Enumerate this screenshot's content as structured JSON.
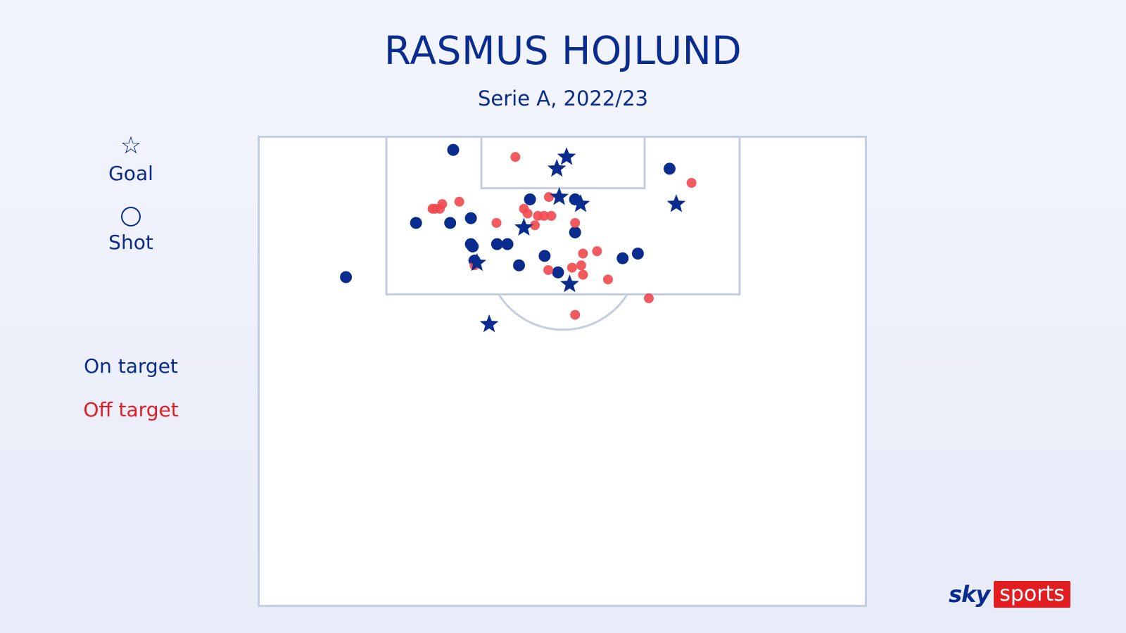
{
  "title": "RASMUS HOJLUND",
  "subtitle": "Serie A, 2022/23",
  "legend": {
    "goal_icon": "☆",
    "goal_label": "Goal",
    "shot_label": "Shot",
    "on_target_label": "On target",
    "off_target_label": "Off target"
  },
  "colors": {
    "on_target": "#0b2c8f",
    "off_target": "#f0494f",
    "pitch_lines": "#c3cde3",
    "brand_red": "#e11d22"
  },
  "brand": {
    "sky": "sky",
    "sports": "sports"
  },
  "chart_data": {
    "type": "scatter",
    "title": "RASMUS HOJLUND",
    "subtitle": "Serie A, 2022/23",
    "xlim": [
      0,
      100
    ],
    "ylim": [
      0,
      100
    ],
    "series": [
      {
        "name": "On target",
        "shape": "circle",
        "points": [
          {
            "x": 32.1,
            "y": 3.0
          },
          {
            "x": 67.6,
            "y": 7.0
          },
          {
            "x": 14.5,
            "y": 30.0
          },
          {
            "x": 44.7,
            "y": 13.5
          },
          {
            "x": 26.0,
            "y": 18.5
          },
          {
            "x": 31.6,
            "y": 18.5
          },
          {
            "x": 35.0,
            "y": 17.5
          },
          {
            "x": 52.1,
            "y": 20.5
          },
          {
            "x": 35.0,
            "y": 23.0
          },
          {
            "x": 35.3,
            "y": 23.5
          },
          {
            "x": 39.3,
            "y": 23.0
          },
          {
            "x": 41.0,
            "y": 23.0
          },
          {
            "x": 35.6,
            "y": 26.5
          },
          {
            "x": 42.9,
            "y": 27.5
          },
          {
            "x": 47.1,
            "y": 25.5
          },
          {
            "x": 49.3,
            "y": 29.0
          },
          {
            "x": 59.9,
            "y": 26.0
          },
          {
            "x": 62.4,
            "y": 25.0
          },
          {
            "x": 52.1,
            "y": 13.5
          }
        ]
      },
      {
        "name": "Off target",
        "shape": "circle",
        "points": [
          {
            "x": 42.3,
            "y": 4.5
          },
          {
            "x": 71.2,
            "y": 10.0
          },
          {
            "x": 28.7,
            "y": 15.5
          },
          {
            "x": 29.1,
            "y": 15.5
          },
          {
            "x": 29.9,
            "y": 15.5
          },
          {
            "x": 30.3,
            "y": 14.5
          },
          {
            "x": 33.1,
            "y": 14.0
          },
          {
            "x": 39.2,
            "y": 18.5
          },
          {
            "x": 43.7,
            "y": 15.5
          },
          {
            "x": 44.3,
            "y": 16.5
          },
          {
            "x": 46.0,
            "y": 17.0
          },
          {
            "x": 47.0,
            "y": 17.0
          },
          {
            "x": 48.2,
            "y": 17.0
          },
          {
            "x": 52.1,
            "y": 18.5
          },
          {
            "x": 45.5,
            "y": 19.0
          },
          {
            "x": 47.8,
            "y": 13.0
          },
          {
            "x": 53.4,
            "y": 25.0
          },
          {
            "x": 55.7,
            "y": 24.5
          },
          {
            "x": 47.7,
            "y": 28.5
          },
          {
            "x": 51.6,
            "y": 28.0
          },
          {
            "x": 53.1,
            "y": 27.5
          },
          {
            "x": 53.4,
            "y": 29.5
          },
          {
            "x": 57.5,
            "y": 30.5
          },
          {
            "x": 64.2,
            "y": 34.5
          },
          {
            "x": 52.1,
            "y": 38.0
          },
          {
            "x": 35.6,
            "y": 27.5
          }
        ]
      },
      {
        "name": "Goal",
        "shape": "star",
        "points": [
          {
            "x": 50.7,
            "y": 4.5
          },
          {
            "x": 49.1,
            "y": 7.0
          },
          {
            "x": 49.5,
            "y": 13.0
          },
          {
            "x": 53.0,
            "y": 14.5
          },
          {
            "x": 43.7,
            "y": 19.5
          },
          {
            "x": 68.7,
            "y": 14.5
          },
          {
            "x": 51.2,
            "y": 31.5
          },
          {
            "x": 38.0,
            "y": 40.0
          },
          {
            "x": 36.0,
            "y": 27.0
          }
        ]
      }
    ]
  }
}
